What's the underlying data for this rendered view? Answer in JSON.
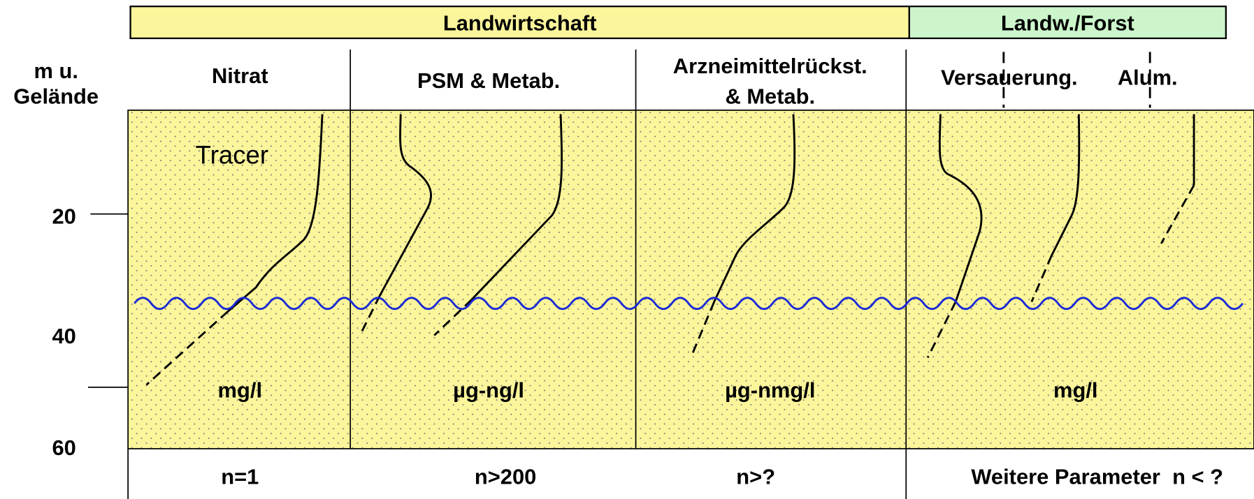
{
  "header": {
    "sections": [
      "Landwirtschaft",
      "Landw./Forst"
    ]
  },
  "axis_label": [
    "m u.",
    "Gelände"
  ],
  "depth_labels": [
    "20",
    "40",
    "60"
  ],
  "columns": [
    {
      "title": [
        "Nitrat"
      ],
      "unit": "mg/l",
      "count": "n=1"
    },
    {
      "title": [
        "PSM & Metab."
      ],
      "unit": "µg-ng/l",
      "count": "n>200"
    },
    {
      "title": [
        "Arzneimittelrückst.",
        "& Metab."
      ],
      "unit": "µg-nmg/l",
      "count": "n>?"
    },
    {
      "title": [
        "Versauerung.",
        "Alum."
      ],
      "unit": "mg/l",
      "count": "Weitere Parameter  n < ?"
    }
  ],
  "tracer": "Tracer"
}
